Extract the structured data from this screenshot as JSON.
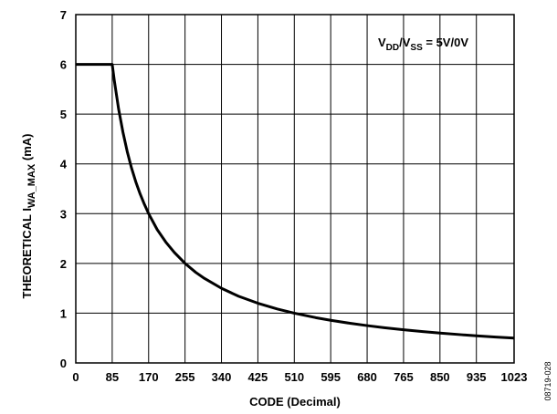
{
  "chart_data": {
    "type": "line",
    "xlabel": "CODE (Decimal)",
    "ylabel": {
      "main": "THEORETICAL I",
      "sub": "WA_MAX",
      "tail": " (mA)"
    },
    "annotation": {
      "v1": "V",
      "sub1": "DD",
      "slash": "/V",
      "sub2": "SS",
      "rest": " = 5V/0V"
    },
    "figure_number": "08719-028",
    "xlim": [
      0,
      1023
    ],
    "ylim": [
      0,
      7
    ],
    "x_ticks": [
      0,
      85,
      170,
      255,
      340,
      425,
      510,
      595,
      680,
      765,
      850,
      935,
      1023
    ],
    "y_ticks": [
      0,
      1,
      2,
      3,
      4,
      5,
      6,
      7
    ],
    "grid": true,
    "series": [
      {
        "x": [
          0,
          85,
          90,
          100,
          110,
          120,
          130,
          140,
          150,
          160,
          170,
          190,
          210,
          230,
          255,
          280,
          300,
          340,
          380,
          425,
          470,
          510,
          560,
          595,
          640,
          680,
          720,
          765,
          810,
          850,
          900,
          935,
          980,
          1023
        ],
        "y": [
          6,
          6,
          5.67,
          5.1,
          4.64,
          4.25,
          3.92,
          3.64,
          3.4,
          3.19,
          3.0,
          2.68,
          2.43,
          2.22,
          2.0,
          1.82,
          1.7,
          1.5,
          1.34,
          1.2,
          1.085,
          1.0,
          0.91,
          0.857,
          0.797,
          0.75,
          0.708,
          0.667,
          0.63,
          0.6,
          0.567,
          0.545,
          0.52,
          0.5
        ]
      }
    ]
  }
}
